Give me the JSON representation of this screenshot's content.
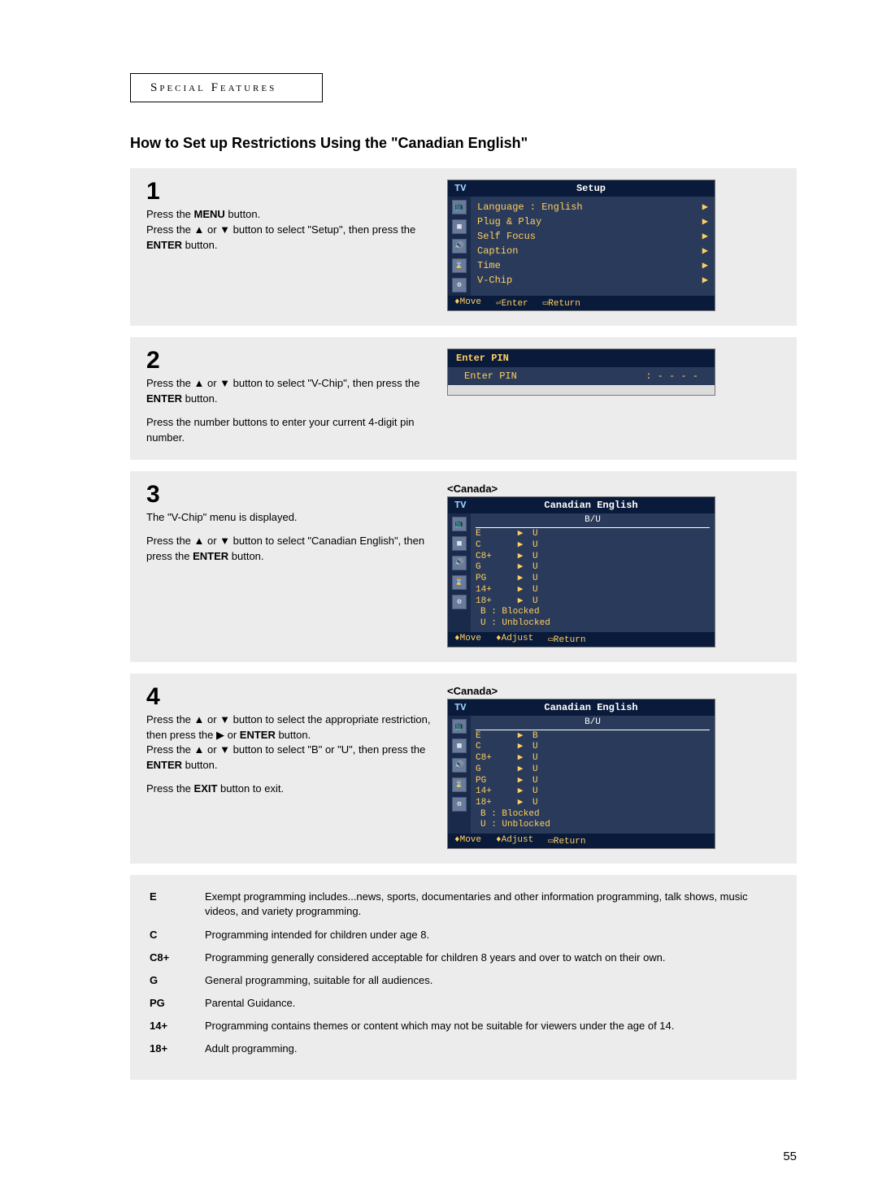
{
  "section_header": "Special Features",
  "main_title": "How to Set up Restrictions Using the \"Canadian English\"",
  "page_number": "55",
  "steps": {
    "1": {
      "num": "1",
      "lines": [
        "Press the <b>MENU</b> button.",
        "Press the ▲ or ▼ button to select \"Setup\", then press the <b>ENTER</b> button."
      ]
    },
    "2": {
      "num": "2",
      "lines": [
        "Press the ▲ or ▼ button to select \"V-Chip\", then press the <b>ENTER</b> button.",
        "",
        "Press the number buttons to enter your current 4-digit pin number."
      ]
    },
    "3": {
      "num": "3",
      "lines": [
        "The \"V-Chip\" menu is displayed.",
        "",
        "Press the ▲ or ▼ button to select \"Canadian English\", then press the <b>ENTER</b> button."
      ]
    },
    "4": {
      "num": "4",
      "lines": [
        "Press the ▲ or ▼ button to select the appropriate restriction, then press  the ▶ or <b>ENTER</b> button.",
        "Press the ▲ or ▼ button to select \"B\" or \"U\", then press the <b>ENTER</b> button.",
        "",
        "Press the <b>EXIT</b> button to exit."
      ]
    }
  },
  "osd_setup": {
    "tv": "TV",
    "title": "Setup",
    "items": [
      {
        "label": "Language  :  English",
        "arrow": "▶"
      },
      {
        "label": "Plug & Play",
        "arrow": "▶"
      },
      {
        "label": "Self Focus",
        "arrow": "▶"
      },
      {
        "label": "Caption",
        "arrow": "▶"
      },
      {
        "label": "Time",
        "arrow": "▶"
      },
      {
        "label": "V-Chip",
        "arrow": "▶"
      }
    ],
    "footer": [
      "♦Move",
      "⏎Enter",
      "▭Return"
    ]
  },
  "osd_pin": {
    "head": "Enter PIN",
    "label": "Enter PIN",
    "value": ": - - - -"
  },
  "osd_canada": {
    "label": "<Canada>",
    "tv": "TV",
    "title": "Canadian English",
    "col_head": "B/U",
    "rows3": [
      {
        "r": "E",
        "a": "▶",
        "v": "U"
      },
      {
        "r": "C",
        "a": "▶",
        "v": "U"
      },
      {
        "r": "C8+",
        "a": "▶",
        "v": "U"
      },
      {
        "r": "G",
        "a": "▶",
        "v": "U"
      },
      {
        "r": "PG",
        "a": "▶",
        "v": "U"
      },
      {
        "r": "14+",
        "a": "▶",
        "v": "U"
      },
      {
        "r": "18+",
        "a": "▶",
        "v": "U"
      }
    ],
    "rows4": [
      {
        "r": "E",
        "a": "▶",
        "v": "B"
      },
      {
        "r": "C",
        "a": "▶",
        "v": "U"
      },
      {
        "r": "C8+",
        "a": "▶",
        "v": "U"
      },
      {
        "r": "G",
        "a": "▶",
        "v": "U"
      },
      {
        "r": "PG",
        "a": "▶",
        "v": "U"
      },
      {
        "r": "14+",
        "a": "▶",
        "v": "U"
      },
      {
        "r": "18+",
        "a": "▶",
        "v": "U"
      }
    ],
    "legend": [
      "B : Blocked",
      "U : Unblocked"
    ],
    "footer": [
      "♦Move",
      "♦Adjust",
      "▭Return"
    ]
  },
  "definitions": [
    {
      "code": "E",
      "text": "Exempt programming includes...news, sports, documentaries and other information programming, talk shows, music videos, and variety programming."
    },
    {
      "code": "C",
      "text": "Programming intended for children under age 8."
    },
    {
      "code": "C8+",
      "text": "Programming generally considered acceptable for children 8 years and over to watch on their own."
    },
    {
      "code": "G",
      "text": "General programming, suitable for all audiences."
    },
    {
      "code": "PG",
      "text": "Parental Guidance."
    },
    {
      "code": "14+",
      "text": "Programming contains themes or content which may not be suitable for viewers under the age of 14."
    },
    {
      "code": "18+",
      "text": "Adult programming."
    }
  ]
}
